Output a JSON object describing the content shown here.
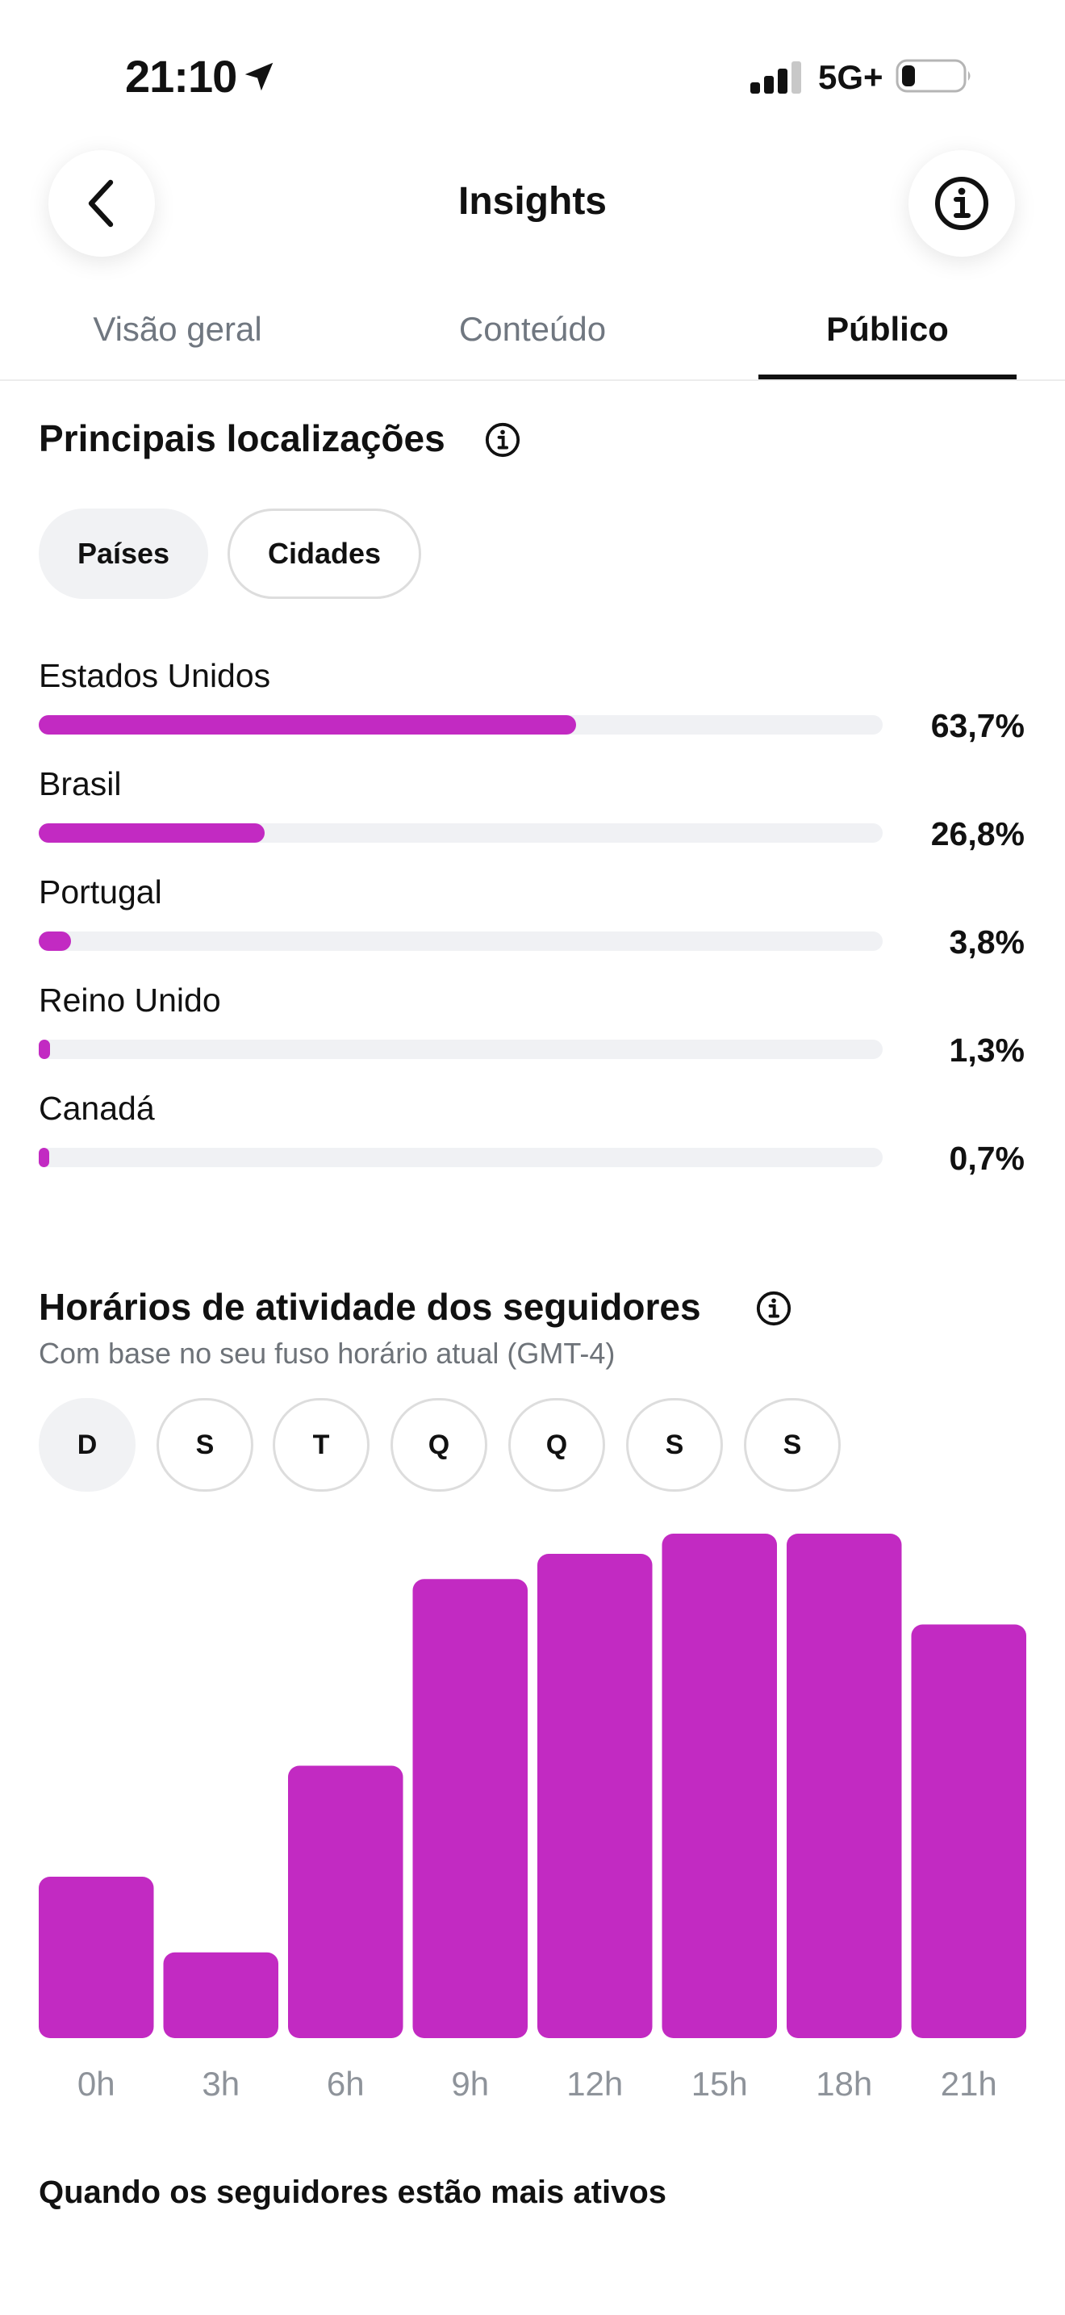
{
  "status_bar": {
    "time": "21:10",
    "network": "5G+"
  },
  "header": {
    "title": "Insights"
  },
  "tabs": [
    {
      "label": "Visão geral",
      "active": false
    },
    {
      "label": "Conteúdo",
      "active": false
    },
    {
      "label": "Público",
      "active": true
    }
  ],
  "locations": {
    "title": "Principais localizações",
    "filters": [
      {
        "label": "Países",
        "selected": true
      },
      {
        "label": "Cidades",
        "selected": false
      }
    ],
    "items": [
      {
        "name": "Estados Unidos",
        "percent_label": "63,7%",
        "fraction": 0.637
      },
      {
        "name": "Brasil",
        "percent_label": "26,8%",
        "fraction": 0.268
      },
      {
        "name": "Portugal",
        "percent_label": "3,8%",
        "fraction": 0.038
      },
      {
        "name": "Reino Unido",
        "percent_label": "1,3%",
        "fraction": 0.013
      },
      {
        "name": "Canadá",
        "percent_label": "0,7%",
        "fraction": 0.007
      }
    ],
    "bar_color": "#c22ac2"
  },
  "activity": {
    "title": "Horários de atividade dos seguidores",
    "subtitle": "Com base no seu fuso horário atual (GMT-4)",
    "days": [
      {
        "label": "D",
        "selected": true
      },
      {
        "label": "S",
        "selected": false
      },
      {
        "label": "T",
        "selected": false
      },
      {
        "label": "Q",
        "selected": false
      },
      {
        "label": "Q",
        "selected": false
      },
      {
        "label": "S",
        "selected": false
      },
      {
        "label": "S",
        "selected": false
      }
    ]
  },
  "chart_data": {
    "type": "bar",
    "categories": [
      "0h",
      "3h",
      "6h",
      "9h",
      "12h",
      "15h",
      "18h",
      "21h"
    ],
    "values": [
      32,
      17,
      54,
      91,
      96,
      100,
      100,
      82
    ],
    "ylim": [
      0,
      100
    ],
    "grid": false,
    "color": "#c22ac2"
  },
  "bottom": {
    "title": "Quando os seguidores estão mais ativos"
  }
}
